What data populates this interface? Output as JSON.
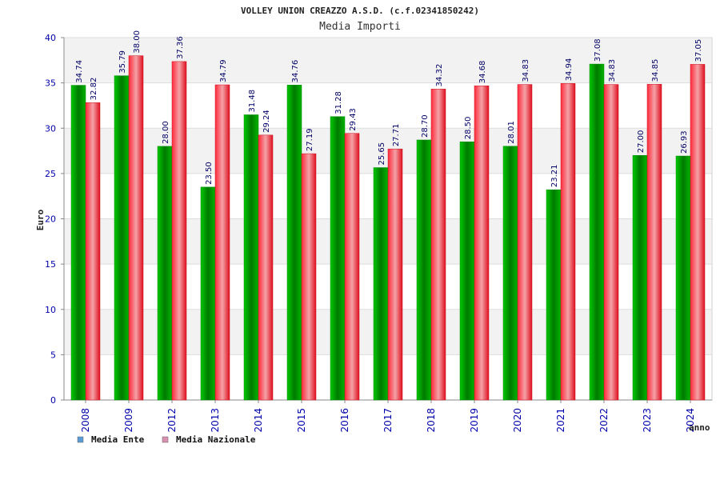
{
  "chart_data": {
    "type": "bar",
    "title": "VOLLEY UNION CREAZZO A.S.D. (c.f.02341850242)",
    "subtitle": "Media Importi",
    "ylabel": "Euro",
    "xlabel": "anno",
    "ylim": [
      0,
      40
    ],
    "yticks": [
      0,
      5,
      10,
      15,
      20,
      25,
      30,
      35,
      40
    ],
    "grid": true,
    "legend_position": "bottom-left",
    "categories": [
      "2008",
      "2009",
      "2012",
      "2013",
      "2014",
      "2015",
      "2016",
      "2017",
      "2018",
      "2019",
      "2020",
      "2021",
      "2022",
      "2023",
      "2024"
    ],
    "series": [
      {
        "name": "Media Ente",
        "color": "#00aa00",
        "legend_color": "#5b9bd5",
        "values": [
          34.74,
          35.79,
          28.0,
          23.5,
          31.48,
          34.76,
          31.28,
          25.65,
          28.7,
          28.5,
          28.01,
          23.21,
          37.08,
          27.0,
          26.93
        ],
        "labels": [
          "34.74",
          "35.79",
          "28.00",
          "23.50",
          "31.48",
          "34.76",
          "31.28",
          "25.65",
          "28.70",
          "28.50",
          "28.01",
          "23.21",
          "37.08",
          "27.00",
          "26.93"
        ]
      },
      {
        "name": "Media Nazionale",
        "color": "#e8202a",
        "legend_color": "#d98fb0",
        "values": [
          32.82,
          38.0,
          37.36,
          34.79,
          29.24,
          27.19,
          29.43,
          27.71,
          34.32,
          34.68,
          34.83,
          34.94,
          34.83,
          34.85,
          37.05
        ],
        "labels": [
          "32.82",
          "38.00",
          "37.36",
          "34.79",
          "29.24",
          "27.19",
          "29.43",
          "27.71",
          "34.32",
          "34.68",
          "34.83",
          "34.94",
          "34.83",
          "34.85",
          "37.05"
        ]
      }
    ]
  }
}
